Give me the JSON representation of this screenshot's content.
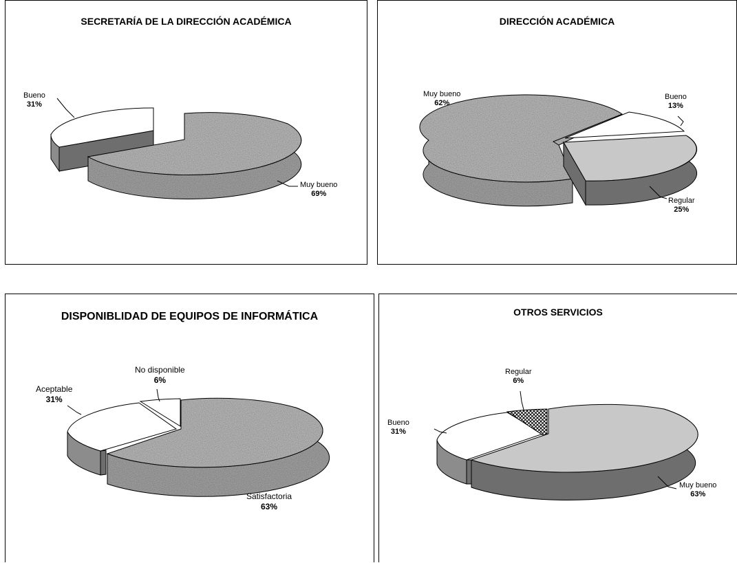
{
  "colors": {
    "white": "#ffffff",
    "granite": "#a8a8a8",
    "dark_gray": "#6e6e6e",
    "mid_gray": "#8c8c8c",
    "light_gray": "#c8c8c8",
    "outline": "#000000"
  },
  "chart_data": [
    {
      "type": "pie",
      "title": "SECRETARÍA DE LA DIRECCIÓN ACADÉMICA",
      "slices": [
        {
          "label": "Bueno",
          "value": 31,
          "value_label": "31%",
          "pattern": "white"
        },
        {
          "label": "Muy bueno",
          "value": 69,
          "value_label": "69%",
          "pattern": "granite"
        }
      ]
    },
    {
      "type": "pie",
      "title": "DIRECCIÓN ACADÉMICA",
      "slices": [
        {
          "label": "Muy bueno",
          "value": 62,
          "value_label": "62%",
          "pattern": "granite"
        },
        {
          "label": "Bueno",
          "value": 13,
          "value_label": "13%",
          "pattern": "white"
        },
        {
          "label": "Regular",
          "value": 25,
          "value_label": "25%",
          "pattern": "light_gray"
        }
      ]
    },
    {
      "type": "pie",
      "title": "DISPONIBLIDAD DE EQUIPOS DE INFORMÁTICA",
      "slices": [
        {
          "label": "No disponible",
          "value": 6,
          "value_label": "6%",
          "pattern": "white"
        },
        {
          "label": "Aceptable",
          "value": 31,
          "value_label": "31%",
          "pattern": "white"
        },
        {
          "label": "Satisfactoria",
          "value": 63,
          "value_label": "63%",
          "pattern": "granite"
        }
      ]
    },
    {
      "type": "pie",
      "title": "OTROS SERVICIOS",
      "slices": [
        {
          "label": "Regular",
          "value": 6,
          "value_label": "6%",
          "pattern": "crosshatch"
        },
        {
          "label": "Bueno",
          "value": 31,
          "value_label": "31%",
          "pattern": "white"
        },
        {
          "label": "Muy bueno",
          "value": 63,
          "value_label": "63%",
          "pattern": "light_gray"
        }
      ]
    }
  ]
}
